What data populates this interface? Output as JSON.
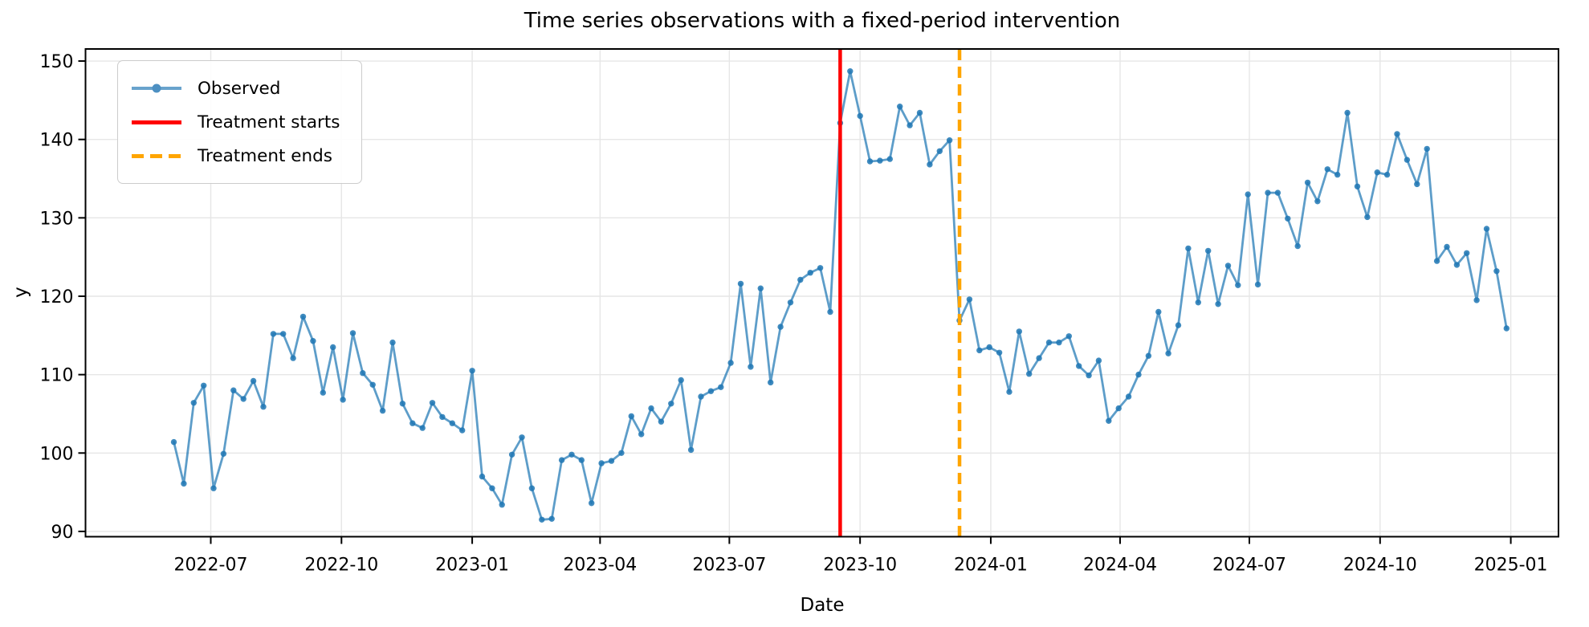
{
  "figure": {
    "title": "Time series observations with a fixed-period intervention",
    "xlabel": "Date",
    "ylabel": "y"
  },
  "chart_data": {
    "type": "line",
    "title": "Time series observations with a fixed-period intervention",
    "xlabel": "Date",
    "ylabel": "y",
    "x_axis_type": "date",
    "grid": true,
    "legend_position": "upper left",
    "grid_color": "#e6e6e6",
    "background_color": "#ffffff",
    "y_ticks": [
      90,
      100,
      110,
      120,
      130,
      140,
      150
    ],
    "ylim": [
      89.3,
      151.5
    ],
    "x_ticks": [
      {
        "label": "2022-07",
        "date": "2022-07-01"
      },
      {
        "label": "2022-10",
        "date": "2022-10-01"
      },
      {
        "label": "2023-01",
        "date": "2023-01-01"
      },
      {
        "label": "2023-04",
        "date": "2023-04-01"
      },
      {
        "label": "2023-07",
        "date": "2023-07-01"
      },
      {
        "label": "2023-10",
        "date": "2023-10-01"
      },
      {
        "label": "2024-01",
        "date": "2024-01-01"
      },
      {
        "label": "2024-04",
        "date": "2024-04-01"
      },
      {
        "label": "2024-07",
        "date": "2024-07-01"
      },
      {
        "label": "2024-10",
        "date": "2024-10-01"
      },
      {
        "label": "2025-01",
        "date": "2025-01-01"
      }
    ],
    "series": [
      {
        "name": "Observed",
        "color": "#1f77b4",
        "alpha": 0.72,
        "marker": "o",
        "frequency": "weekly",
        "dates": [
          "2022-06-05",
          "2022-06-12",
          "2022-06-19",
          "2022-06-26",
          "2022-07-03",
          "2022-07-10",
          "2022-07-17",
          "2022-07-24",
          "2022-07-31",
          "2022-08-07",
          "2022-08-14",
          "2022-08-21",
          "2022-08-28",
          "2022-09-04",
          "2022-09-11",
          "2022-09-18",
          "2022-09-25",
          "2022-10-02",
          "2022-10-09",
          "2022-10-16",
          "2022-10-23",
          "2022-10-30",
          "2022-11-06",
          "2022-11-13",
          "2022-11-20",
          "2022-11-27",
          "2022-12-04",
          "2022-12-11",
          "2022-12-18",
          "2022-12-25",
          "2023-01-01",
          "2023-01-08",
          "2023-01-15",
          "2023-01-22",
          "2023-01-29",
          "2023-02-05",
          "2023-02-12",
          "2023-02-19",
          "2023-02-26",
          "2023-03-05",
          "2023-03-12",
          "2023-03-19",
          "2023-03-26",
          "2023-04-02",
          "2023-04-09",
          "2023-04-16",
          "2023-04-23",
          "2023-04-30",
          "2023-05-07",
          "2023-05-14",
          "2023-05-21",
          "2023-05-28",
          "2023-06-04",
          "2023-06-11",
          "2023-06-18",
          "2023-06-25",
          "2023-07-02",
          "2023-07-09",
          "2023-07-16",
          "2023-07-23",
          "2023-07-30",
          "2023-08-06",
          "2023-08-13",
          "2023-08-20",
          "2023-08-27",
          "2023-09-03",
          "2023-09-10",
          "2023-09-17",
          "2023-09-24",
          "2023-10-01",
          "2023-10-08",
          "2023-10-15",
          "2023-10-22",
          "2023-10-29",
          "2023-11-05",
          "2023-11-12",
          "2023-11-19",
          "2023-11-26",
          "2023-12-03",
          "2023-12-10",
          "2023-12-17",
          "2023-12-24",
          "2023-12-31",
          "2024-01-07",
          "2024-01-14",
          "2024-01-21",
          "2024-01-28",
          "2024-02-04",
          "2024-02-11",
          "2024-02-18",
          "2024-02-25",
          "2024-03-03",
          "2024-03-10",
          "2024-03-17",
          "2024-03-24",
          "2024-03-31",
          "2024-04-07",
          "2024-04-14",
          "2024-04-21",
          "2024-04-28",
          "2024-05-05",
          "2024-05-12",
          "2024-05-19",
          "2024-05-26",
          "2024-06-02",
          "2024-06-09",
          "2024-06-16",
          "2024-06-23",
          "2024-06-30",
          "2024-07-07",
          "2024-07-14",
          "2024-07-21",
          "2024-07-28",
          "2024-08-04",
          "2024-08-11",
          "2024-08-18",
          "2024-08-25",
          "2024-09-01",
          "2024-09-08",
          "2024-09-15",
          "2024-09-22",
          "2024-09-29",
          "2024-10-06",
          "2024-10-13",
          "2024-10-20",
          "2024-10-27",
          "2024-11-03",
          "2024-11-10",
          "2024-11-17",
          "2024-11-24",
          "2024-12-01",
          "2024-12-08",
          "2024-12-15",
          "2024-12-22",
          "2024-12-29"
        ],
        "values": [
          101.4,
          96.1,
          106.4,
          108.6,
          95.5,
          99.9,
          108.0,
          106.9,
          109.2,
          105.9,
          115.2,
          115.2,
          112.1,
          117.4,
          114.3,
          107.7,
          113.5,
          106.8,
          115.3,
          110.2,
          108.7,
          105.4,
          114.1,
          106.3,
          103.8,
          103.2,
          106.4,
          104.6,
          103.8,
          102.9,
          110.5,
          97.0,
          95.5,
          93.4,
          99.8,
          102.0,
          95.5,
          91.5,
          91.6,
          99.1,
          99.8,
          99.1,
          93.6,
          98.7,
          99.0,
          100.0,
          104.7,
          102.4,
          105.7,
          104.0,
          106.3,
          109.3,
          100.4,
          107.2,
          107.9,
          108.4,
          111.5,
          121.6,
          111.0,
          121.0,
          109.0,
          116.1,
          119.2,
          122.1,
          123.0,
          123.6,
          118.0,
          142.1,
          148.7,
          143.0,
          137.2,
          137.3,
          137.5,
          144.2,
          141.8,
          143.4,
          136.8,
          138.5,
          139.9,
          116.9,
          119.6,
          113.1,
          113.5,
          112.8,
          107.8,
          115.5,
          110.1,
          112.1,
          114.1,
          114.1,
          114.9,
          111.1,
          109.9,
          111.8,
          104.1,
          105.7,
          107.2,
          110.0,
          112.4,
          118.0,
          112.7,
          116.3,
          126.1,
          119.2,
          125.8,
          119.0,
          123.9,
          121.4,
          133.0,
          121.5,
          133.2,
          133.2,
          129.9,
          126.4,
          134.5,
          132.1,
          136.2,
          135.5,
          143.4,
          134.0,
          130.1,
          135.8,
          135.5,
          140.7,
          137.4,
          134.3,
          138.8,
          124.5,
          126.3,
          124.0,
          125.5,
          119.5,
          128.6,
          123.2,
          115.9
        ]
      }
    ],
    "vlines": [
      {
        "label": "Treatment starts",
        "date": "2023-09-17",
        "color": "#ff0000",
        "style": "solid"
      },
      {
        "label": "Treatment ends",
        "date": "2023-12-10",
        "color": "#ffa500",
        "style": "dashed"
      }
    ]
  }
}
